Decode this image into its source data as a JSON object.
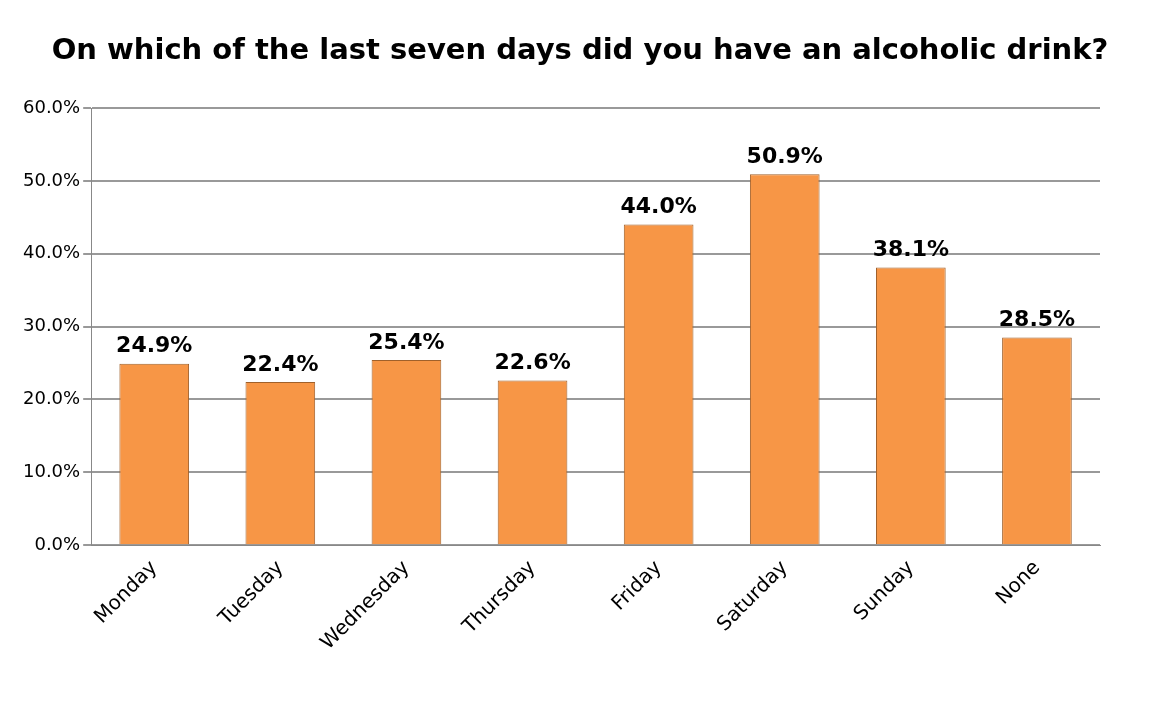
{
  "chart_data": {
    "type": "bar",
    "title": "On which of the last seven days did you have an alcoholic drink?",
    "categories": [
      "Monday",
      "Tuesday",
      "Wednesday",
      "Thursday",
      "Friday",
      "Saturday",
      "Sunday",
      "None"
    ],
    "values": [
      24.9,
      22.4,
      25.4,
      22.6,
      44.0,
      50.9,
      38.1,
      28.5
    ],
    "value_labels": [
      "24.9%",
      "22.4%",
      "25.4%",
      "22.6%",
      "44.0%",
      "50.9%",
      "38.1%",
      "28.5%"
    ],
    "color": "#f79646",
    "ylim": [
      0,
      60
    ],
    "yticks": [
      {
        "value": 0,
        "label": "0.0%"
      },
      {
        "value": 10,
        "label": "10.0%"
      },
      {
        "value": 20,
        "label": "20.0%"
      },
      {
        "value": 30,
        "label": "30.0%"
      },
      {
        "value": 40,
        "label": "40.0%"
      },
      {
        "value": 50,
        "label": "50.0%"
      },
      {
        "value": 60,
        "label": "60.0%"
      }
    ],
    "grid": "y",
    "legend": false
  }
}
